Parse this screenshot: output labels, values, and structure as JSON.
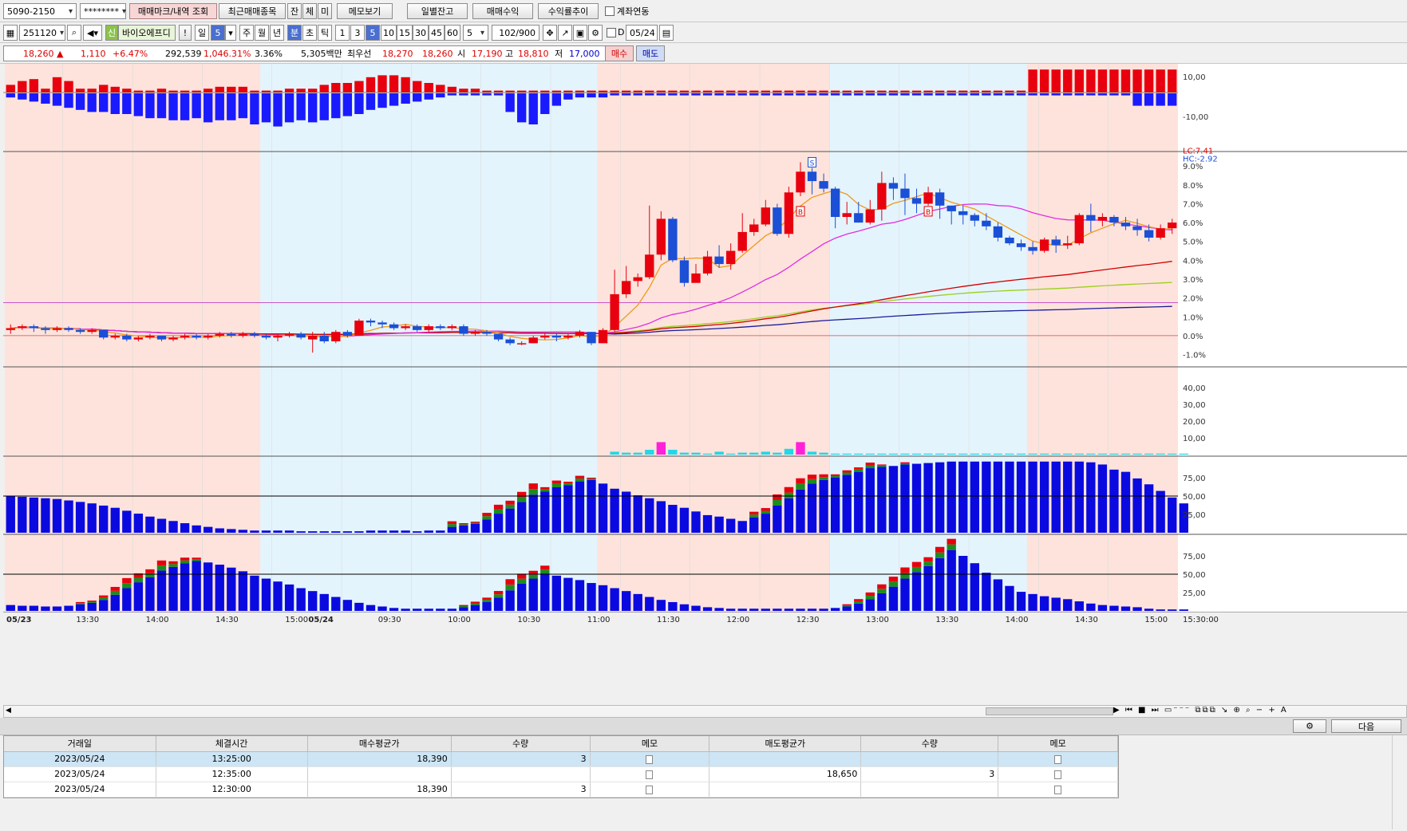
{
  "toolbar1": {
    "account": "5090-2150",
    "password": "********",
    "buttons": [
      "매매마크/내역 조회",
      "최근매매종목",
      "잔",
      "체",
      "미",
      "메모보기",
      "일별잔고",
      "매매수익",
      "수익률추이"
    ],
    "link_label": "계좌연동"
  },
  "toolbar2": {
    "code": "251120",
    "stock_badge": "신",
    "stock_name": "바이오에프디",
    "bang": "!",
    "period_day": "일",
    "period_n": "5",
    "periods": [
      "주",
      "월",
      "년",
      "분",
      "초",
      "틱"
    ],
    "intervals": [
      "1",
      "3",
      "5",
      "10",
      "15",
      "30",
      "45",
      "60"
    ],
    "interval_select": "5",
    "count": "102",
    "count_max": "/900",
    "flag": "D",
    "date": "05/24"
  },
  "quote": {
    "price": "18,260",
    "arrow": "▲",
    "change": "1,110",
    "change_pct": "+6.47%",
    "volume": "292,539",
    "vol_ratio": "1,046.31%",
    "turnover": "3.36%",
    "amount": "5,305백만",
    "ask_label": "최우선",
    "ask": "18,270",
    "bid": "18,260",
    "open_label": "시",
    "open": "17,190",
    "high_label": "고",
    "high": "18,810",
    "low_label": "저",
    "low": "17,000",
    "buy_label": "매수",
    "sell_label": "매도"
  },
  "chart_data": {
    "type": "candlestick",
    "interval": "5분",
    "panel_ticks": {
      "top": [
        "10,00",
        "-10,00"
      ],
      "price": [
        "9.0%",
        "8.0%",
        "7.0%",
        "6.0%",
        "5.0%",
        "4.0%",
        "3.0%",
        "2.0%",
        "1.0%",
        "0.0%",
        "-1.0%"
      ],
      "volume": [
        "40,00",
        "30,00",
        "20,00",
        "10,00"
      ],
      "stoch1": [
        "75,00",
        "50,00",
        "25,00"
      ],
      "stoch2": [
        "75,00",
        "50,00",
        "25,00"
      ]
    },
    "lc_label": "LC:7.41",
    "hc_label": "HC:-2.92",
    "x_labels": [
      "05/23",
      "13:30",
      "14:00",
      "14:30",
      "15:00",
      "05/24",
      "09:30",
      "10:00",
      "10:30",
      "11:00",
      "11:30",
      "12:00",
      "12:30",
      "13:00",
      "13:30",
      "14:00",
      "14:30",
      "15:00"
    ],
    "last_time": "15:30:00",
    "trade_marks": [
      {
        "type": "B",
        "time": "12:30",
        "value": 6.6
      },
      {
        "type": "S",
        "time": "12:35",
        "value": 9.2
      },
      {
        "type": "B",
        "time": "13:25",
        "value": 6.6
      }
    ],
    "candles": [
      [
        0.3,
        0.4,
        0.1,
        0.6
      ],
      [
        0.4,
        0.5,
        0.3,
        0.6
      ],
      [
        0.5,
        0.4,
        0.2,
        0.6
      ],
      [
        0.4,
        0.3,
        0.1,
        0.5
      ],
      [
        0.3,
        0.4,
        0.2,
        0.5
      ],
      [
        0.4,
        0.3,
        0.2,
        0.5
      ],
      [
        0.3,
        0.2,
        0.1,
        0.4
      ],
      [
        0.2,
        0.3,
        0.1,
        0.4
      ],
      [
        0.3,
        -0.1,
        -0.2,
        0.3
      ],
      [
        -0.1,
        0.0,
        -0.2,
        0.1
      ],
      [
        0.0,
        -0.2,
        -0.3,
        0.1
      ],
      [
        -0.2,
        -0.1,
        -0.3,
        0.0
      ],
      [
        -0.1,
        0.0,
        -0.2,
        0.1
      ],
      [
        0.0,
        -0.2,
        -0.3,
        0.0
      ],
      [
        -0.2,
        -0.1,
        -0.3,
        0.0
      ],
      [
        -0.1,
        0.0,
        -0.2,
        0.1
      ],
      [
        0.0,
        -0.1,
        -0.2,
        0.1
      ],
      [
        -0.1,
        0.0,
        -0.2,
        0.1
      ],
      [
        0.0,
        0.1,
        -0.1,
        0.2
      ],
      [
        0.1,
        0.0,
        -0.1,
        0.2
      ],
      [
        0.0,
        0.1,
        -0.1,
        0.2
      ],
      [
        0.1,
        0.0,
        -0.1,
        0.2
      ],
      [
        0.0,
        -0.1,
        -0.2,
        0.1
      ],
      [
        -0.1,
        0.0,
        -0.3,
        0.1
      ],
      [
        0.0,
        0.1,
        -0.1,
        0.2
      ],
      [
        0.1,
        -0.1,
        -0.2,
        0.2
      ],
      [
        -0.2,
        0.0,
        -0.9,
        0.2
      ],
      [
        0.0,
        -0.3,
        -0.4,
        0.2
      ],
      [
        -0.3,
        0.2,
        -0.4,
        0.3
      ],
      [
        0.2,
        0.0,
        -0.1,
        0.3
      ],
      [
        0.0,
        0.8,
        0.0,
        0.9
      ],
      [
        0.8,
        0.7,
        0.5,
        0.9
      ],
      [
        0.7,
        0.6,
        0.4,
        0.8
      ],
      [
        0.6,
        0.4,
        0.3,
        0.7
      ],
      [
        0.4,
        0.5,
        0.3,
        0.6
      ],
      [
        0.5,
        0.3,
        0.2,
        0.6
      ],
      [
        0.3,
        0.5,
        0.2,
        0.6
      ],
      [
        0.5,
        0.4,
        0.3,
        0.6
      ],
      [
        0.4,
        0.5,
        0.3,
        0.6
      ],
      [
        0.5,
        0.1,
        0.0,
        0.6
      ],
      [
        0.1,
        0.2,
        0.0,
        0.3
      ],
      [
        0.2,
        0.1,
        0.0,
        0.3
      ],
      [
        0.1,
        -0.2,
        -0.3,
        0.1
      ],
      [
        -0.2,
        -0.4,
        -0.5,
        -0.1
      ],
      [
        -0.4,
        -0.4,
        -0.5,
        -0.3
      ],
      [
        -0.4,
        -0.1,
        -0.4,
        0.0
      ],
      [
        -0.1,
        0.0,
        -0.2,
        0.1
      ],
      [
        0.0,
        -0.1,
        -0.3,
        0.1
      ],
      [
        -0.1,
        0.0,
        -0.2,
        0.1
      ],
      [
        0.0,
        0.2,
        -0.1,
        0.3
      ],
      [
        0.2,
        -0.4,
        -0.5,
        0.2
      ],
      [
        -0.4,
        0.3,
        -0.4,
        0.4
      ],
      [
        0.3,
        2.2,
        0.2,
        3.5
      ],
      [
        2.2,
        2.9,
        2.0,
        3.7
      ],
      [
        2.9,
        3.1,
        2.6,
        3.3
      ],
      [
        3.1,
        4.3,
        3.0,
        6.9
      ],
      [
        4.3,
        6.2,
        4.0,
        6.6
      ],
      [
        6.2,
        4.0,
        3.9,
        6.3
      ],
      [
        4.0,
        2.8,
        2.6,
        4.2
      ],
      [
        2.8,
        3.3,
        2.9,
        3.8
      ],
      [
        3.3,
        4.2,
        3.2,
        4.5
      ],
      [
        4.2,
        3.8,
        3.6,
        4.8
      ],
      [
        3.8,
        4.5,
        3.5,
        4.9
      ],
      [
        4.5,
        5.5,
        4.4,
        6.5
      ],
      [
        5.5,
        5.9,
        5.3,
        6.2
      ],
      [
        5.9,
        6.8,
        5.8,
        7.2
      ],
      [
        6.8,
        5.4,
        5.3,
        7.0
      ],
      [
        5.4,
        7.6,
        5.2,
        7.9
      ],
      [
        7.6,
        8.7,
        7.4,
        9.2
      ],
      [
        8.7,
        8.2,
        7.5,
        8.9
      ],
      [
        8.2,
        7.8,
        7.6,
        8.6
      ],
      [
        7.8,
        6.3,
        5.7,
        7.9
      ],
      [
        6.3,
        6.5,
        5.9,
        7.1
      ],
      [
        6.5,
        6.0,
        6.0,
        7.1
      ],
      [
        6.0,
        6.7,
        5.9,
        7.2
      ],
      [
        6.7,
        8.1,
        6.1,
        8.7
      ],
      [
        8.1,
        7.8,
        7.2,
        8.4
      ],
      [
        7.8,
        7.3,
        6.4,
        8.6
      ],
      [
        7.3,
        7.0,
        6.5,
        7.8
      ],
      [
        7.0,
        7.6,
        6.9,
        7.9
      ],
      [
        7.6,
        6.9,
        6.2,
        7.8
      ],
      [
        6.9,
        6.6,
        5.9,
        6.9
      ],
      [
        6.6,
        6.4,
        5.9,
        6.9
      ],
      [
        6.4,
        6.1,
        5.8,
        6.5
      ],
      [
        6.1,
        5.8,
        5.6,
        6.5
      ],
      [
        5.8,
        5.2,
        5.0,
        6.0
      ],
      [
        5.2,
        4.9,
        4.8,
        5.3
      ],
      [
        4.9,
        4.7,
        4.5,
        5.1
      ],
      [
        4.7,
        4.5,
        4.3,
        5.0
      ],
      [
        4.5,
        5.1,
        4.4,
        5.2
      ],
      [
        5.1,
        4.8,
        4.4,
        5.3
      ],
      [
        4.8,
        4.9,
        4.6,
        5.3
      ],
      [
        4.9,
        6.4,
        4.8,
        6.5
      ],
      [
        6.4,
        6.1,
        5.5,
        7.0
      ],
      [
        6.1,
        6.3,
        5.8,
        6.5
      ],
      [
        6.3,
        6.0,
        5.8,
        6.4
      ],
      [
        6.0,
        5.8,
        5.6,
        6.3
      ],
      [
        5.8,
        5.6,
        5.3,
        6.2
      ],
      [
        5.6,
        5.2,
        5.0,
        5.9
      ],
      [
        5.2,
        5.7,
        5.1,
        5.9
      ],
      [
        5.7,
        6.0,
        5.4,
        6.2
      ]
    ],
    "top_indicator": [
      [
        4,
        6,
        7,
        2,
        8,
        6,
        2,
        2,
        4,
        3,
        2,
        1,
        1,
        2,
        1,
        1,
        1,
        2,
        3,
        3,
        3,
        1,
        1,
        1,
        2,
        2,
        2,
        4,
        5,
        5,
        6,
        8,
        9,
        9,
        8,
        6,
        5,
        4,
        3,
        2,
        2,
        1,
        1,
        1,
        1,
        1,
        1,
        1,
        1,
        1,
        1,
        1,
        1,
        1,
        1,
        1,
        1,
        1,
        1,
        1,
        1,
        1,
        1,
        1,
        1,
        1,
        1,
        1,
        1,
        1,
        1,
        1,
        1,
        1,
        1,
        1,
        1,
        1,
        1,
        1,
        1,
        1,
        1,
        1,
        1,
        1,
        1,
        1,
        1,
        1,
        1,
        1,
        1,
        1,
        1,
        1,
        1,
        1,
        1,
        1,
        1,
        1
      ],
      [
        -2,
        -3,
        -4,
        -5,
        -6,
        -7,
        -8,
        -9,
        -9,
        -10,
        -10,
        -11,
        -12,
        -12,
        -13,
        -13,
        -12,
        -14,
        -13,
        -13,
        -12,
        -15,
        -14,
        -16,
        -14,
        -13,
        -14,
        -13,
        -12,
        -11,
        -10,
        -8,
        -7,
        -6,
        -5,
        -4,
        -3,
        -2,
        -1,
        -1,
        -1,
        -1,
        -1,
        -9,
        -14,
        -15,
        -10,
        -6,
        -3,
        -2,
        -2,
        -2,
        -1,
        -1,
        -1,
        -1,
        -1,
        -1,
        -1,
        -1,
        -1,
        -1,
        -1,
        -1,
        -1,
        -1,
        -1,
        -1,
        -1,
        -1,
        -1,
        -1,
        -1,
        -1,
        -1,
        -1,
        -1,
        -1,
        -1,
        -1,
        -1,
        -1,
        -1,
        -1,
        -1,
        -1,
        -1,
        -1,
        -1,
        -1,
        -1,
        -1,
        -1,
        -1,
        -1,
        -1,
        -1,
        -1,
        -1,
        -1,
        -1,
        -1
      ]
    ],
    "top_pos_plan": [
      [
        0,
        8,
        "r"
      ],
      [
        26,
        60,
        "mixed"
      ],
      [
        52,
        101,
        "r"
      ]
    ],
    "volume_pct": [
      0,
      0,
      0,
      0,
      0,
      0,
      0,
      0,
      0,
      0,
      0,
      0,
      0,
      0,
      0,
      0,
      0,
      0,
      0,
      0,
      0,
      0,
      0,
      0,
      0,
      0,
      0,
      0,
      0,
      0,
      0,
      0,
      0,
      0,
      0,
      0,
      0,
      0,
      0,
      0,
      0,
      0,
      0,
      0,
      0,
      0,
      0,
      0,
      0,
      0,
      0,
      0,
      3,
      2,
      2,
      5,
      13,
      5,
      2,
      2,
      1,
      3,
      1,
      2,
      2,
      3,
      2,
      6,
      13,
      3,
      2,
      1,
      1,
      1,
      1,
      1,
      1,
      1,
      1,
      1,
      1,
      1,
      1,
      1,
      1,
      1,
      1,
      1,
      1,
      1,
      1,
      1,
      1,
      1,
      1,
      1,
      1,
      1,
      1,
      1,
      1,
      1
    ],
    "stoch1": [
      50,
      49,
      48,
      47,
      46,
      44,
      42,
      40,
      37,
      34,
      30,
      26,
      22,
      19,
      16,
      13,
      10,
      8,
      6,
      5,
      4,
      3,
      3,
      3,
      3,
      2,
      2,
      2,
      2,
      2,
      2,
      3,
      3,
      3,
      3,
      2,
      3,
      3,
      8,
      10,
      12,
      18,
      26,
      33,
      42,
      52,
      56,
      62,
      65,
      70,
      72,
      67,
      60,
      56,
      51,
      47,
      43,
      38,
      34,
      29,
      24,
      22,
      19,
      16,
      21,
      26,
      37,
      47,
      59,
      67,
      72,
      75,
      79,
      83,
      88,
      90,
      91,
      93,
      94,
      95,
      96,
      97,
      97,
      97,
      97,
      97,
      97,
      97,
      97,
      97,
      97,
      97,
      97,
      96,
      93,
      86,
      83,
      74,
      66,
      57,
      48,
      40
    ],
    "stoch2": [
      8,
      7,
      7,
      6,
      6,
      7,
      9,
      11,
      15,
      22,
      31,
      39,
      46,
      55,
      60,
      65,
      68,
      66,
      63,
      59,
      54,
      48,
      44,
      40,
      36,
      31,
      27,
      23,
      19,
      15,
      11,
      8,
      6,
      4,
      3,
      3,
      3,
      3,
      3,
      5,
      8,
      12,
      18,
      28,
      37,
      44,
      51,
      48,
      45,
      42,
      38,
      35,
      31,
      27,
      23,
      19,
      15,
      12,
      9,
      7,
      5,
      4,
      3,
      3,
      3,
      3,
      3,
      3,
      3,
      3,
      3,
      4,
      6,
      10,
      16,
      24,
      33,
      44,
      53,
      61,
      72,
      83,
      75,
      65,
      52,
      43,
      34,
      26,
      23,
      20,
      18,
      16,
      13,
      10,
      8,
      7,
      6,
      5,
      3,
      2,
      2,
      2
    ],
    "legend_lines": {
      "ma5": "#ef9a1a",
      "ma20": "#e22ee2",
      "ma60": "#d40000",
      "ma120": "#1a1a9c",
      "ma240": "#9ccf1b"
    }
  },
  "trades": {
    "headers": [
      "거래일",
      "체결시간",
      "매수평균가",
      "수량",
      "메모",
      "매도평균가",
      "수량",
      "메모"
    ],
    "rows": [
      [
        "2023/05/24",
        "13:25:00",
        "18,390",
        "3",
        "",
        "",
        "",
        ""
      ],
      [
        "2023/05/24",
        "12:35:00",
        "",
        "",
        "",
        "18,650",
        "3",
        ""
      ],
      [
        "2023/05/24",
        "12:30:00",
        "18,390",
        "3",
        "",
        "",
        "",
        ""
      ]
    ],
    "next_label": "다음"
  }
}
